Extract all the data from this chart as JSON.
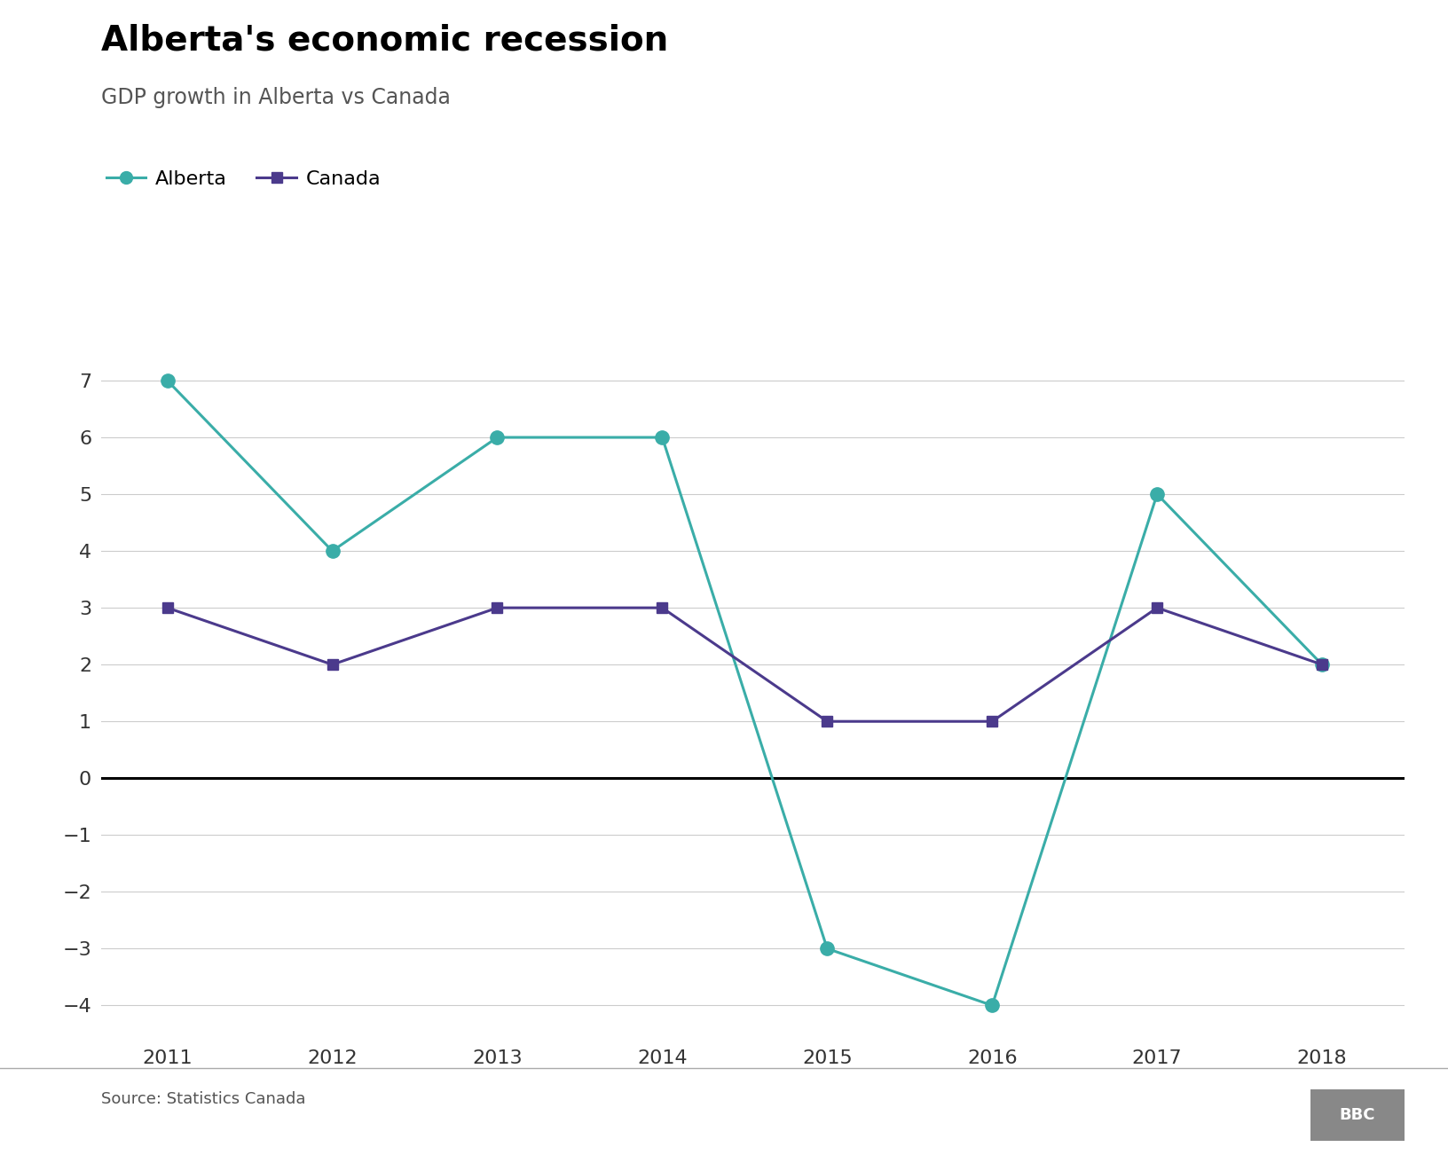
{
  "title": "Alberta's economic recession",
  "subtitle": "GDP growth in Alberta vs Canada",
  "source": "Source: Statistics Canada",
  "bbc_logo": "BBC",
  "years": [
    2011,
    2012,
    2013,
    2014,
    2015,
    2016,
    2017,
    2018
  ],
  "alberta": [
    7,
    4,
    6,
    6,
    -3,
    -4,
    5,
    2
  ],
  "canada": [
    3,
    2,
    3,
    3,
    1,
    1,
    3,
    2
  ],
  "alberta_color": "#3AADA8",
  "canada_color": "#4B3A8C",
  "zero_line_color": "#000000",
  "grid_color": "#CCCCCC",
  "background_color": "#FFFFFF",
  "title_fontsize": 28,
  "subtitle_fontsize": 17,
  "legend_fontsize": 16,
  "tick_fontsize": 16,
  "source_fontsize": 13,
  "ylim": [
    -4.6,
    7.6
  ],
  "yticks": [
    -4,
    -3,
    -2,
    -1,
    0,
    1,
    2,
    3,
    4,
    5,
    6,
    7
  ],
  "line_width": 2.2,
  "marker_size_alberta": 11,
  "marker_size_canada": 8
}
